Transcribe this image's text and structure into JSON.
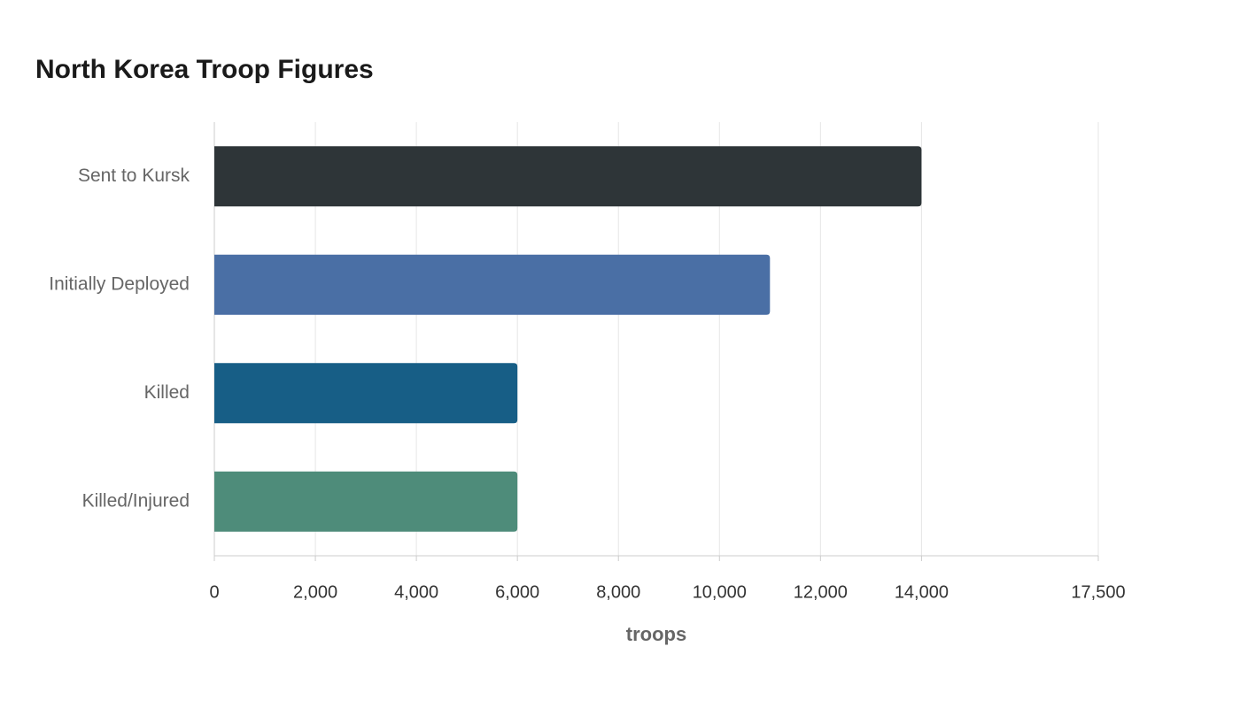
{
  "chart_data": {
    "type": "bar",
    "orientation": "horizontal",
    "title": "North Korea Troop Figures",
    "categories": [
      "Sent to Kursk",
      "Initially Deployed",
      "Killed",
      "Killed/Injured"
    ],
    "values": [
      14000,
      11000,
      6000,
      6000
    ],
    "colors": [
      "#2e3538",
      "#4a6fa5",
      "#175e86",
      "#4e8c7a"
    ],
    "x_label": "troops",
    "xlim": [
      0,
      17500
    ],
    "xticks": [
      0,
      {
        "value": 2000,
        "label": "2,000"
      },
      {
        "value": 4000,
        "label": "4,000"
      },
      {
        "value": 6000,
        "label": "6,000"
      },
      {
        "value": 8000,
        "label": "8,000"
      },
      {
        "value": 10000,
        "label": "10,000"
      },
      {
        "value": 12000,
        "label": "12,000"
      },
      {
        "value": 14000,
        "label": "14,000"
      },
      {
        "value": 17500,
        "label": "17,500"
      }
    ],
    "grid": true
  }
}
